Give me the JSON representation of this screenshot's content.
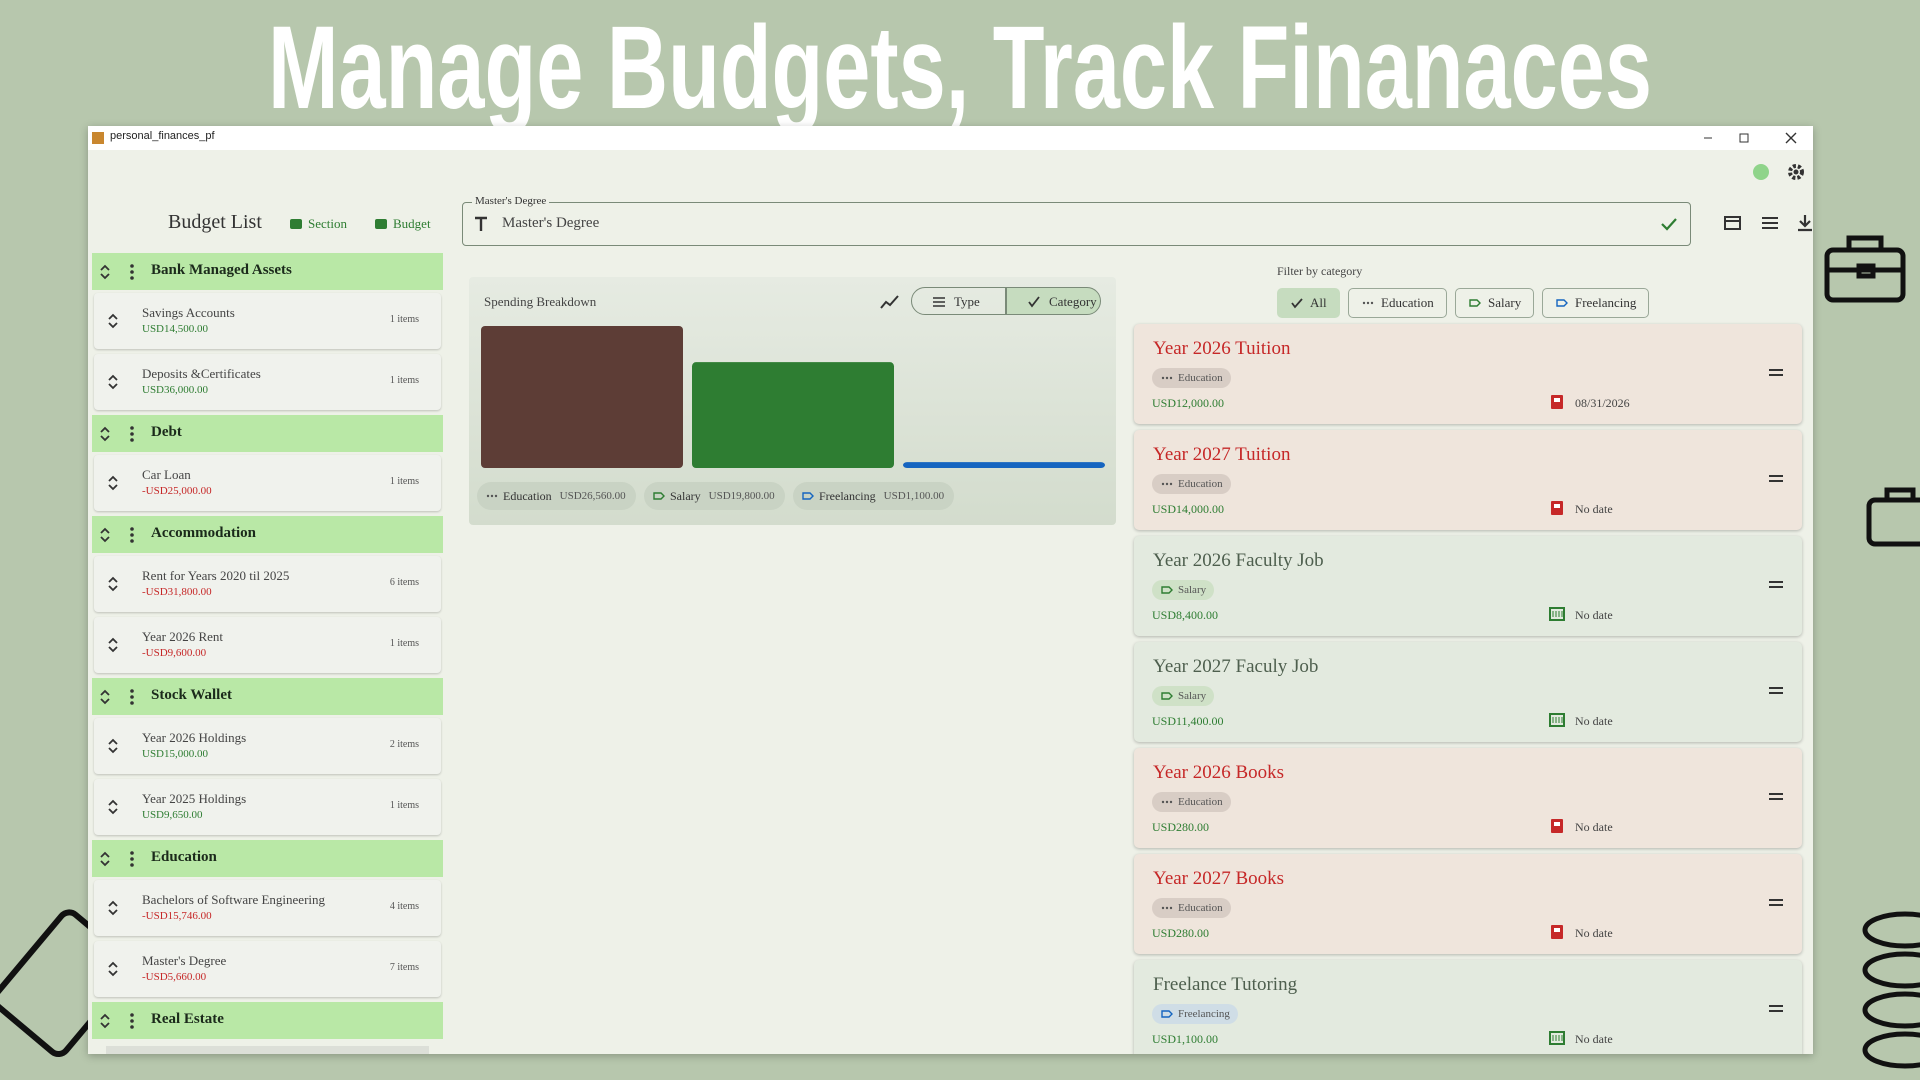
{
  "banner": {
    "title": "Manage Budgets, Track Finanaces"
  },
  "window": {
    "title": "personal_finances_pf"
  },
  "budget_list": {
    "title": "Budget List",
    "actions": [
      "Section",
      "Budget"
    ],
    "sections": [
      {
        "name": "Bank Managed Assets",
        "items": [
          {
            "name": "Savings Accounts",
            "amount": "USD14,500.00",
            "count": "1 items"
          },
          {
            "name": "Deposits &Certificates",
            "amount": "USD36,000.00",
            "count": "1 items"
          }
        ]
      },
      {
        "name": "Debt",
        "items": [
          {
            "name": "Car Loan",
            "amount": "-USD25,000.00",
            "count": "1 items"
          }
        ]
      },
      {
        "name": "Accommodation",
        "items": [
          {
            "name": "Rent for Years 2020 til 2025",
            "amount": "-USD31,800.00",
            "count": "6 items"
          },
          {
            "name": "Year 2026 Rent",
            "amount": "-USD9,600.00",
            "count": "1 items"
          }
        ]
      },
      {
        "name": "Stock Wallet",
        "items": [
          {
            "name": "Year 2026 Holdings",
            "amount": "USD15,000.00",
            "count": "2 items"
          },
          {
            "name": "Year 2025 Holdings",
            "amount": "USD9,650.00",
            "count": "1 items"
          }
        ]
      },
      {
        "name": "Education",
        "items": [
          {
            "name": "Bachelors of Software Engineering",
            "amount": "-USD15,746.00",
            "count": "4 items"
          },
          {
            "name": "Master's Degree",
            "amount": "-USD5,660.00",
            "count": "7 items"
          }
        ]
      },
      {
        "name": "Real Estate",
        "items": []
      }
    ]
  },
  "editor": {
    "field_label": "Master's Degree",
    "field_value": "Master's Degree"
  },
  "spending_chart": {
    "type": "bar",
    "title": "Spending Breakdown",
    "toggles": [
      "Type",
      "Category"
    ],
    "selected_toggle": 1,
    "categories": [
      "Education",
      "Salary",
      "Freelancing"
    ],
    "values": [
      26560,
      19800,
      1100
    ],
    "value_labels": [
      "USD26,560.00",
      "USD19,800.00",
      "USD1,100.00"
    ],
    "colors": [
      "#5d3d36",
      "#2e7d32",
      "#1565c0"
    ]
  },
  "filter": {
    "label": "Filter by category",
    "chips": [
      "All",
      "Education",
      "Salary",
      "Freelancing"
    ],
    "selected": 0
  },
  "items": [
    {
      "title": "Year 2026 Tuition",
      "tag": "Education",
      "amount": "USD12,000.00",
      "date": "08/31/2026",
      "accent": "#c62828"
    },
    {
      "title": "Year 2027 Tuition",
      "tag": "Education",
      "amount": "USD14,000.00",
      "date": "No date",
      "accent": "#c62828"
    },
    {
      "title": "Year 2026 Faculty Job",
      "tag": "Salary",
      "amount": "USD8,400.00",
      "date": "No date",
      "accent": "#4e5f4e"
    },
    {
      "title": "Year 2027 Faculy Job",
      "tag": "Salary",
      "amount": "USD11,400.00",
      "date": "No date",
      "accent": "#4e5f4e"
    },
    {
      "title": "Year 2026 Books",
      "tag": "Education",
      "amount": "USD280.00",
      "date": "No date",
      "accent": "#c62828"
    },
    {
      "title": "Year 2027 Books",
      "tag": "Education",
      "amount": "USD280.00",
      "date": "No date",
      "accent": "#c62828"
    },
    {
      "title": "Freelance Tutoring",
      "tag": "Freelancing",
      "amount": "USD1,100.00",
      "date": "No date",
      "accent": "#4e5f4e"
    }
  ]
}
